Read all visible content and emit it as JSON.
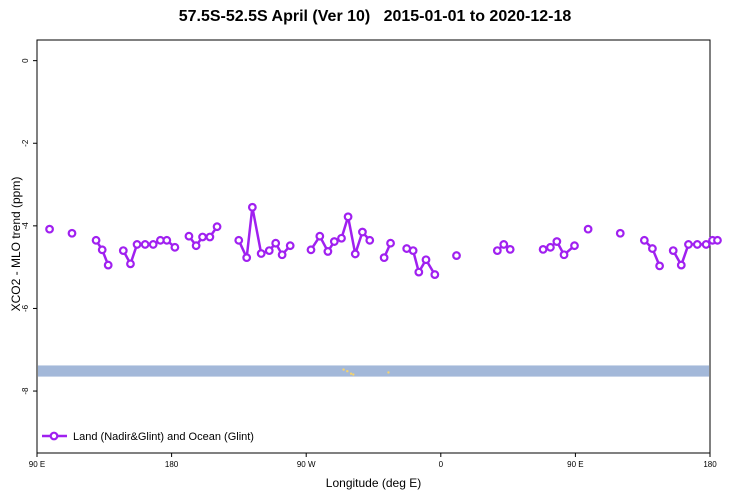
{
  "chart_data": {
    "type": "line",
    "title": "57.5S-52.5S April (Ver 10)   2015-01-01 to 2020-12-18",
    "xlabel": "Longitude (deg E)",
    "ylabel": "XCO2 - MLO trend (ppm)",
    "x_ticks": [
      {
        "value": 90,
        "label": "90 E"
      },
      {
        "value": 180,
        "label": "180"
      },
      {
        "value": 270,
        "label": "90 W"
      },
      {
        "value": 360,
        "label": "0"
      },
      {
        "value": 450,
        "label": "90 E"
      },
      {
        "value": 540,
        "label": "180"
      }
    ],
    "y_ticks": [
      {
        "value": 0,
        "label": "0"
      },
      {
        "value": -2,
        "label": "-2"
      },
      {
        "value": -4,
        "label": "-4"
      },
      {
        "value": -6,
        "label": "-6"
      },
      {
        "value": -8,
        "label": "-8"
      }
    ],
    "xlim": [
      90,
      540
    ],
    "ylim": [
      -9.5,
      0.5
    ],
    "grid": false,
    "legend_position": "bottom-left",
    "series": [
      {
        "name": "Land (Nadir&Glint) and Ocean (Glint)",
        "color": "#a020f0",
        "segments": [
          [
            [
              98.4,
              -4.08
            ]
          ],
          [
            [
              113.4,
              -4.18
            ]
          ],
          [
            [
              129.5,
              -4.35
            ],
            [
              133.6,
              -4.58
            ],
            [
              137.6,
              -4.95
            ]
          ],
          [
            [
              147.7,
              -4.6
            ],
            [
              152.5,
              -4.92
            ],
            [
              156.9,
              -4.45
            ],
            [
              162.3,
              -4.45
            ],
            [
              167.7,
              -4.45
            ],
            [
              172.5,
              -4.35
            ],
            [
              176.8,
              -4.35
            ],
            [
              182.2,
              -4.52
            ]
          ],
          [
            [
              191.6,
              -4.25
            ],
            [
              196.4,
              -4.48
            ],
            [
              200.7,
              -4.27
            ],
            [
              205.6,
              -4.27
            ],
            [
              210.4,
              -4.02
            ]
          ],
          [
            [
              224.9,
              -4.35
            ],
            [
              230.2,
              -4.77
            ],
            [
              234.0,
              -3.55
            ],
            [
              239.9,
              -4.67
            ],
            [
              245.3,
              -4.6
            ],
            [
              249.6,
              -4.42
            ],
            [
              253.9,
              -4.7
            ],
            [
              259.3,
              -4.48
            ]
          ],
          [
            [
              273.2,
              -4.58
            ],
            [
              279.1,
              -4.25
            ],
            [
              284.5,
              -4.62
            ],
            [
              288.8,
              -4.38
            ],
            [
              293.6,
              -4.3
            ],
            [
              298.0,
              -3.78
            ],
            [
              302.8,
              -4.68
            ],
            [
              307.6,
              -4.15
            ],
            [
              312.5,
              -4.35
            ]
          ],
          [
            [
              322.1,
              -4.77
            ],
            [
              326.4,
              -4.42
            ]
          ],
          [
            [
              337.2,
              -4.55
            ],
            [
              341.5,
              -4.6
            ],
            [
              345.3,
              -5.12
            ],
            [
              350.1,
              -4.82
            ],
            [
              356.0,
              -5.18
            ]
          ],
          [
            [
              370.5,
              -4.72
            ]
          ],
          [
            [
              397.8,
              -4.6
            ],
            [
              402.1,
              -4.45
            ],
            [
              406.4,
              -4.57
            ]
          ],
          [
            [
              428.4,
              -4.57
            ],
            [
              433.3,
              -4.52
            ],
            [
              437.6,
              -4.38
            ],
            [
              442.4,
              -4.7
            ],
            [
              449.4,
              -4.48
            ]
          ],
          [
            [
              458.5,
              -4.08
            ]
          ],
          [
            [
              480.0,
              -4.18
            ]
          ],
          [
            [
              496.1,
              -4.35
            ],
            [
              501.5,
              -4.55
            ],
            [
              506.3,
              -4.97
            ]
          ],
          [
            [
              515.4,
              -4.6
            ],
            [
              520.8,
              -4.95
            ],
            [
              525.6,
              -4.45
            ],
            [
              531.5,
              -4.45
            ],
            [
              537.4,
              -4.45
            ],
            [
              541.7,
              -4.35
            ],
            [
              545.0,
              -4.35
            ]
          ]
        ]
      }
    ],
    "ocean_band": {
      "y_range": [
        -7.65,
        -7.38
      ],
      "color": "#a3b8d9"
    },
    "land_marks": {
      "color": "#f5d36e",
      "points": [
        [
          295.0,
          -7.48
        ],
        [
          297.5,
          -7.52
        ],
        [
          300.0,
          -7.58
        ],
        [
          301.5,
          -7.6
        ],
        [
          325.0,
          -7.55
        ]
      ]
    }
  }
}
